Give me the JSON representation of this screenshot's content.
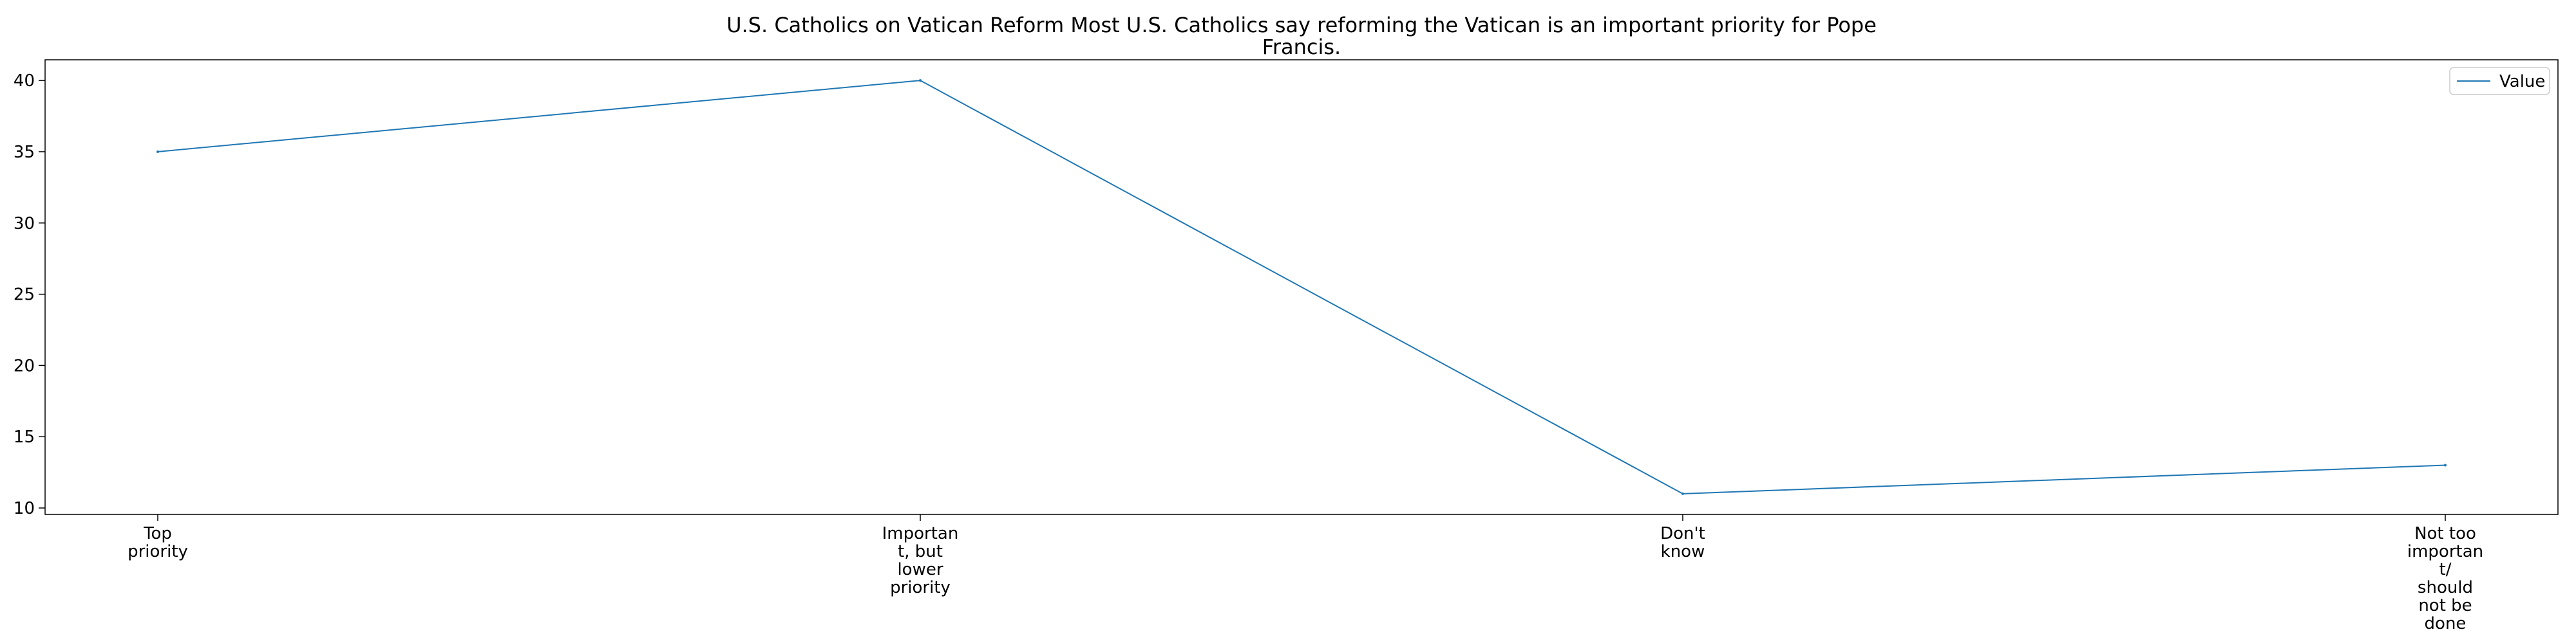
{
  "chart_data": {
    "type": "line",
    "title": "U.S. Catholics on Vatican Reform Most U.S. Catholics say reforming the Vatican is an important priority for Pope Francis.",
    "categories": [
      "Top priority",
      "Important, but lower priority",
      "Don't know",
      "Not too important/ should not be done"
    ],
    "series": [
      {
        "name": "Value",
        "values": [
          35,
          40,
          11,
          13
        ]
      }
    ],
    "ylim": [
      9.55,
      41.45
    ],
    "yticks": [
      10,
      15,
      20,
      25,
      30,
      35,
      40
    ],
    "grid": false,
    "legend_position": "top-right",
    "line_color": "#1f77b4"
  }
}
